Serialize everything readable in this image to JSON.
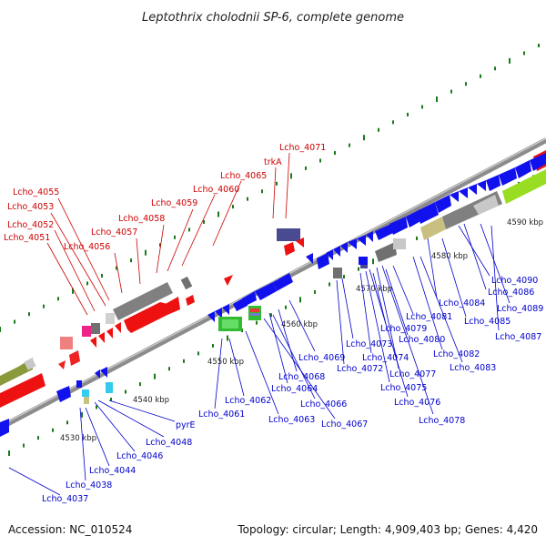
{
  "title": "Leptothrix cholodnii SP-6, complete genome",
  "footer": {
    "accession": "Accession: NC_010524",
    "summary": "Topology: circular; Length: 4,909,403 bp; Genes: 4,420"
  },
  "colors": {
    "forward_label": "#cc0000",
    "reverse_label": "#0000cc",
    "backbone": "#9a9a9a",
    "tick": "#1a7a1a"
  },
  "ticks": [
    "4530 kbp",
    "4540 kbp",
    "4550 kbp",
    "4560 kbp",
    "4570 kbp",
    "4580 kbp",
    "4590 kbp"
  ],
  "forward_labels": [
    "Lcho_4071",
    "trkA",
    "Lcho_4065",
    "Lcho_4060",
    "Lcho_4059",
    "Lcho_4058",
    "Lcho_4057",
    "Lcho_4056",
    "Lcho_4055",
    "Lcho_4053",
    "Lcho_4052",
    "Lcho_4051"
  ],
  "reverse_labels": [
    "Lcho_4090",
    "Lcho_4086",
    "Lcho_4089",
    "Lcho_4084",
    "Lcho_4085",
    "Lcho_4087",
    "Lcho_4081",
    "Lcho_4080",
    "Lcho_4082",
    "Lcho_4083",
    "Lcho_4079",
    "Lcho_4073",
    "Lcho_4074",
    "Lcho_4072",
    "Lcho_4077",
    "Lcho_4075",
    "Lcho_4076",
    "Lcho_4078",
    "Lcho_4069",
    "Lcho_4068",
    "Lcho_4064",
    "Lcho_4066",
    "Lcho_4063",
    "Lcho_4067",
    "Lcho_4062",
    "Lcho_4061",
    "pyrE",
    "Lcho_4048",
    "Lcho_4046",
    "Lcho_4044",
    "Lcho_4038",
    "Lcho_4037"
  ]
}
